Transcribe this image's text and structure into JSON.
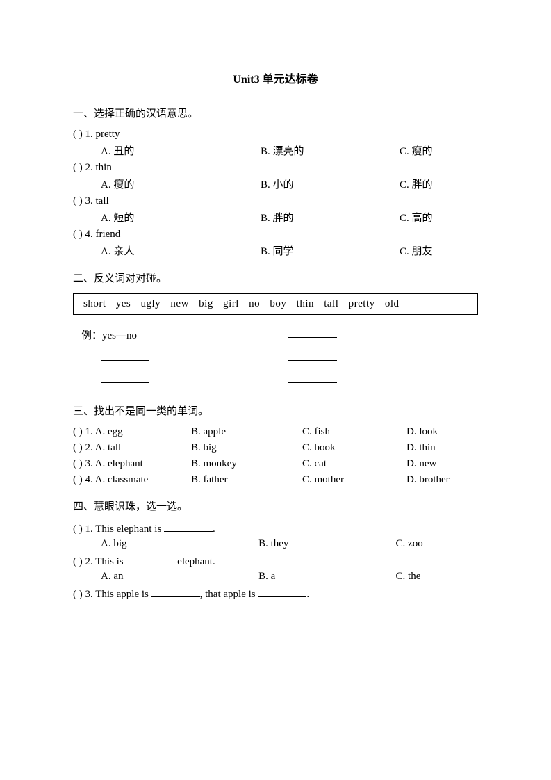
{
  "title": "Unit3  单元达标卷",
  "section1": {
    "heading": "一、选择正确的汉语意思。",
    "items": [
      {
        "stem": "(    ) 1. pretty",
        "A": "A.  丑的",
        "B": "B.  漂亮的",
        "C": "C.  瘦的"
      },
      {
        "stem": "(    ) 2. thin",
        "A": "A.  瘦的",
        "B": "B.  小的",
        "C": "C.  胖的"
      },
      {
        "stem": "(    ) 3. tall",
        "A": "A.  短的",
        "B": "B.  胖的",
        "C": "C.  高的"
      },
      {
        "stem": "(    ) 4. friend",
        "A": "A.  亲人",
        "B": "B.  同学",
        "C": "C.  朋友"
      }
    ]
  },
  "section2": {
    "heading": "二、反义词对对碰。",
    "box_words": "short   yes   ugly   new   big   girl   no   boy   thin   tall   pretty   old",
    "example": "例：yes—no"
  },
  "section3": {
    "heading": "三、找出不是同一类的单词。",
    "items": [
      {
        "A": "(    ) 1. A. egg",
        "B": "B. apple",
        "C": "C. fish",
        "D": "D. look"
      },
      {
        "A": "(    ) 2. A. tall",
        "B": "B. big",
        "C": "C. book",
        "D": "D. thin"
      },
      {
        "A": "(    ) 3. A. elephant",
        "B": "B. monkey",
        "C": "C. cat",
        "D": "D. new"
      },
      {
        "A": "(    ) 4. A. classmate",
        "B": "B. father",
        "C": "C. mother",
        "D": "D. brother"
      }
    ]
  },
  "section4": {
    "heading": "四、慧眼识珠，选一选。",
    "items": [
      {
        "stem_before": "(    ) 1. This elephant is ",
        "stem_after": ".",
        "A": "A. big",
        "B": "B. they",
        "C": "C. zoo"
      },
      {
        "stem_before": "(    ) 2. This is ",
        "stem_mid": " elephant.",
        "stem_after": "",
        "A": "A. an",
        "B": "B. a",
        "C": "C. the"
      },
      {
        "stem_before": "(    ) 3. This apple is ",
        "stem_mid": ", that apple is ",
        "stem_after": ".",
        "A": "",
        "B": "",
        "C": ""
      }
    ]
  }
}
